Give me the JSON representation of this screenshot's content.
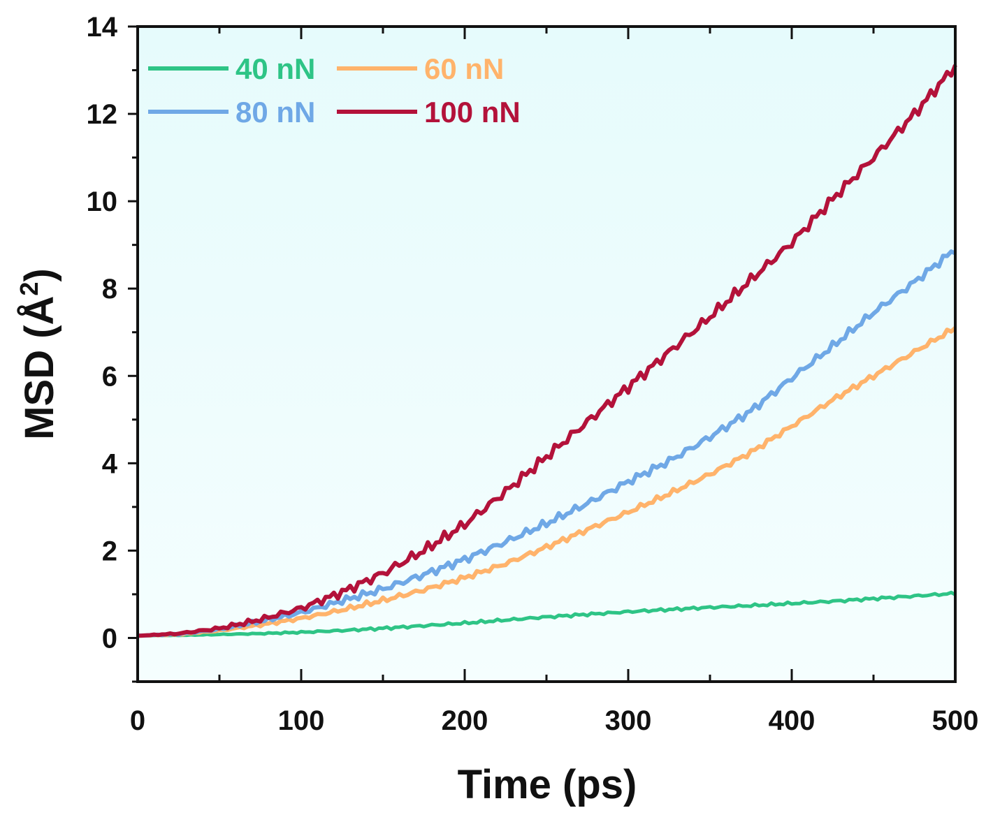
{
  "chart_data": {
    "type": "line",
    "title": "",
    "xlabel": "Time (ps)",
    "ylabel": "MSD (Å",
    "ylabel_superscript": "2",
    "ylabel_close": ")",
    "xlim": [
      0,
      500
    ],
    "ylim": [
      -1,
      14
    ],
    "x_ticks": [
      0,
      100,
      200,
      300,
      400,
      500
    ],
    "y_ticks": [
      0,
      2,
      4,
      6,
      8,
      10,
      12,
      14
    ],
    "x_tick_labels": [
      "0",
      "100",
      "200",
      "300",
      "400",
      "500"
    ],
    "y_tick_labels": [
      "0",
      "2",
      "4",
      "6",
      "8",
      "10",
      "12",
      "14"
    ],
    "grid": false,
    "legend_position": "top-left",
    "background": "light cyan gradient",
    "x": [
      0,
      25,
      50,
      75,
      100,
      125,
      150,
      175,
      200,
      225,
      250,
      275,
      300,
      325,
      350,
      375,
      400,
      425,
      450,
      475,
      500
    ],
    "series": [
      {
        "name": "40 nN",
        "color": "#2ec486",
        "values": [
          0.05,
          0.06,
          0.08,
          0.1,
          0.13,
          0.17,
          0.22,
          0.28,
          0.34,
          0.41,
          0.48,
          0.54,
          0.6,
          0.65,
          0.7,
          0.74,
          0.79,
          0.84,
          0.9,
          0.96,
          1.02
        ]
      },
      {
        "name": "60 nN",
        "color": "#ffb36b",
        "values": [
          0.05,
          0.08,
          0.17,
          0.3,
          0.45,
          0.64,
          0.86,
          1.1,
          1.38,
          1.7,
          2.08,
          2.48,
          2.88,
          3.3,
          3.75,
          4.25,
          4.85,
          5.45,
          6.0,
          6.55,
          7.1
        ]
      },
      {
        "name": "80 nN",
        "color": "#6fa8e6",
        "values": [
          0.05,
          0.09,
          0.2,
          0.38,
          0.58,
          0.85,
          1.12,
          1.45,
          1.8,
          2.2,
          2.62,
          3.08,
          3.58,
          4.05,
          4.6,
          5.2,
          5.95,
          6.68,
          7.45,
          8.15,
          8.9
        ]
      },
      {
        "name": "100 nN",
        "color": "#b3123a",
        "values": [
          0.05,
          0.1,
          0.22,
          0.42,
          0.68,
          1.05,
          1.48,
          2.0,
          2.6,
          3.35,
          4.15,
          4.95,
          5.75,
          6.55,
          7.35,
          8.2,
          9.05,
          10.05,
          11.0,
          12.0,
          13.1
        ]
      }
    ]
  }
}
